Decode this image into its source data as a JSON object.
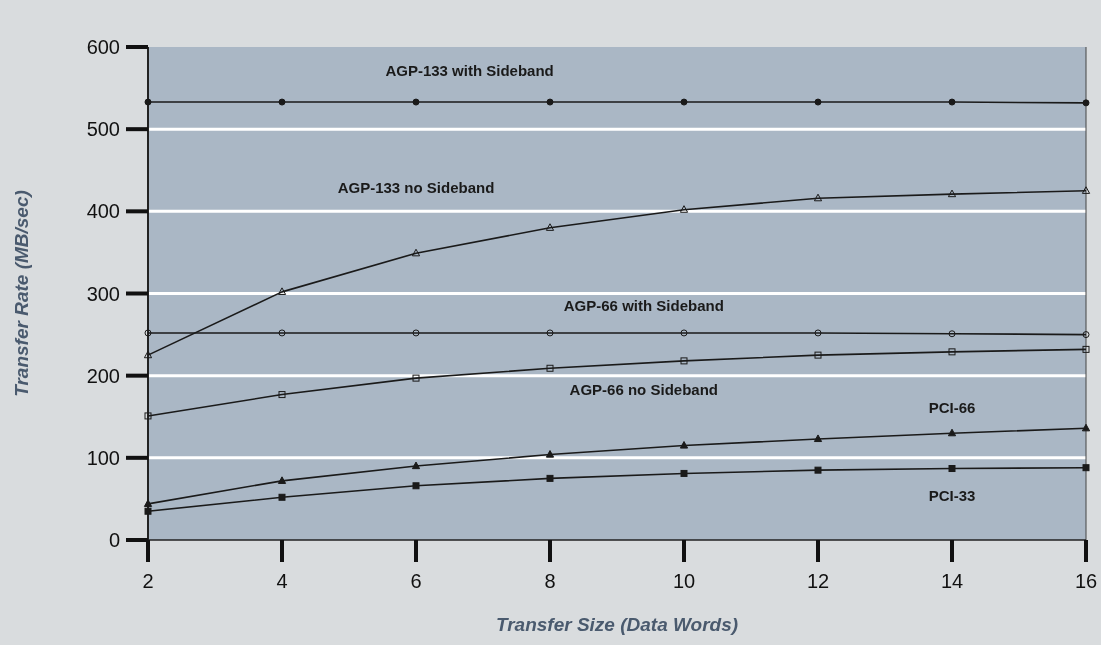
{
  "chart_data": {
    "type": "line",
    "xlabel": "Transfer Size (Data Words)",
    "ylabel": "Transfer Rate (MB/sec)",
    "x": [
      2,
      4,
      6,
      8,
      10,
      12,
      14,
      16
    ],
    "series": [
      {
        "name": "AGP-133 with Sideband",
        "color": "#1a1a1a",
        "marker": "circle",
        "values": [
          533,
          533,
          533,
          533,
          533,
          533,
          533,
          532
        ]
      },
      {
        "name": "AGP-133 no Sideband",
        "color": "#1a1a1a",
        "marker": "triangle",
        "values": [
          225,
          302,
          349,
          380,
          402,
          416,
          421,
          425
        ]
      },
      {
        "name": "AGP-66 with Sideband",
        "color": "#1a1a1a",
        "marker": "circle",
        "values": [
          252,
          252,
          252,
          252,
          252,
          252,
          251,
          250
        ]
      },
      {
        "name": "AGP-66 no Sideband",
        "color": "#1a1a1a",
        "marker": "square",
        "values": [
          151,
          177,
          197,
          209,
          218,
          225,
          229,
          232
        ]
      },
      {
        "name": "PCI-66",
        "color": "#1a1a1a",
        "marker": "triangle",
        "values": [
          44,
          72,
          90,
          104,
          115,
          123,
          130,
          136
        ]
      },
      {
        "name": "PCI-33",
        "color": "#1a1a1a",
        "marker": "square",
        "values": [
          35,
          52,
          66,
          75,
          81,
          85,
          87,
          88
        ]
      }
    ],
    "xlim": [
      2,
      16
    ],
    "xticks": [
      2,
      4,
      6,
      8,
      10,
      12,
      14,
      16
    ],
    "ylim": [
      0,
      600
    ],
    "yticks": [
      0,
      100,
      200,
      300,
      400,
      500,
      600
    ],
    "grid": "y"
  }
}
